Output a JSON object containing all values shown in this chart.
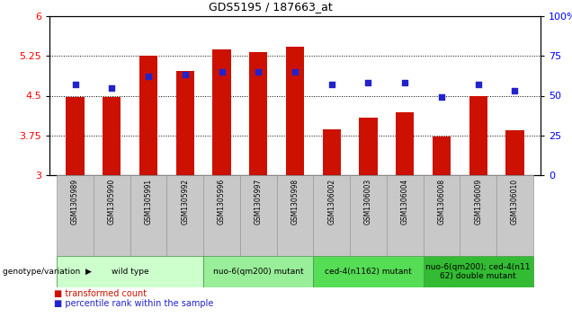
{
  "title": "GDS5195 / 187663_at",
  "samples": [
    "GSM1305989",
    "GSM1305990",
    "GSM1305991",
    "GSM1305992",
    "GSM1305996",
    "GSM1305997",
    "GSM1305998",
    "GSM1306002",
    "GSM1306003",
    "GSM1306004",
    "GSM1306008",
    "GSM1306009",
    "GSM1306010"
  ],
  "bar_values": [
    4.47,
    4.47,
    5.25,
    4.97,
    5.37,
    5.33,
    5.42,
    3.87,
    4.08,
    4.18,
    3.73,
    4.49,
    3.85
  ],
  "dot_percentiles": [
    57,
    55,
    62,
    63,
    65,
    65,
    65,
    57,
    58,
    58,
    49,
    57,
    53
  ],
  "y_min": 3,
  "y_max": 6,
  "y_ticks_left": [
    3,
    3.75,
    4.5,
    5.25,
    6
  ],
  "y_ticks_right": [
    0,
    25,
    50,
    75,
    100
  ],
  "bar_color": "#CC1100",
  "dot_color": "#2222CC",
  "sample_box_color": "#CCCCCC",
  "groups": [
    {
      "label": "wild type",
      "start": 0,
      "end": 3,
      "color": "#CCFFCC"
    },
    {
      "label": "nuo-6(qm200) mutant",
      "start": 4,
      "end": 6,
      "color": "#99EE99"
    },
    {
      "label": "ced-4(n1162) mutant",
      "start": 7,
      "end": 9,
      "color": "#55DD55"
    },
    {
      "label": "nuo-6(qm200); ced-4(n11\n62) double mutant",
      "start": 10,
      "end": 12,
      "color": "#33BB33"
    }
  ],
  "legend": [
    {
      "label": "transformed count",
      "color": "#CC1100"
    },
    {
      "label": "percentile rank within the sample",
      "color": "#2222CC"
    }
  ],
  "geno_label": "genotype/variation"
}
